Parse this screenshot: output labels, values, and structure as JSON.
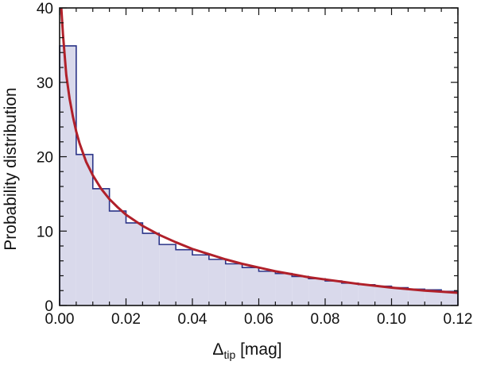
{
  "chart_data": {
    "type": "bar",
    "title": "",
    "xlabel": {
      "main": "Δ",
      "sub": "tip",
      "unit": " [mag]"
    },
    "ylabel": "Probability distribution",
    "xlim": [
      0,
      0.12
    ],
    "ylim": [
      0,
      40
    ],
    "xticks": [
      "0.00",
      "0.02",
      "0.04",
      "0.06",
      "0.08",
      "0.10",
      "0.12"
    ],
    "yticks": [
      "0",
      "10",
      "20",
      "30",
      "40"
    ],
    "histogram": {
      "bin_width": 0.005,
      "bin_edges": [
        0,
        0.005,
        0.01,
        0.015,
        0.02,
        0.025,
        0.03,
        0.035,
        0.04,
        0.045,
        0.05,
        0.055,
        0.06,
        0.065,
        0.07,
        0.075,
        0.08,
        0.085,
        0.09,
        0.095,
        0.1,
        0.105,
        0.11,
        0.115,
        0.12
      ],
      "values": [
        34.9,
        20.3,
        15.7,
        12.7,
        11.1,
        9.7,
        8.2,
        7.5,
        6.8,
        6.2,
        5.6,
        5.1,
        4.6,
        4.3,
        3.9,
        3.6,
        3.3,
        3.0,
        2.8,
        2.6,
        2.4,
        2.2,
        2.1,
        1.9
      ]
    },
    "fit_curve": {
      "x": [
        0.0005,
        0.001,
        0.002,
        0.003,
        0.004,
        0.005,
        0.006,
        0.008,
        0.01,
        0.0125,
        0.015,
        0.0175,
        0.02,
        0.025,
        0.03,
        0.035,
        0.04,
        0.045,
        0.05,
        0.055,
        0.06,
        0.065,
        0.07,
        0.075,
        0.08,
        0.085,
        0.09,
        0.095,
        0.1,
        0.105,
        0.11,
        0.115,
        0.12
      ],
      "y": [
        40.0,
        36.5,
        31.0,
        27.8,
        25.4,
        23.4,
        21.8,
        19.3,
        17.5,
        15.7,
        14.3,
        13.2,
        12.2,
        10.7,
        9.5,
        8.5,
        7.6,
        6.9,
        6.2,
        5.6,
        5.1,
        4.6,
        4.2,
        3.8,
        3.5,
        3.2,
        2.9,
        2.65,
        2.4,
        2.2,
        2.0,
        1.85,
        1.7
      ]
    },
    "colors": {
      "bar_fill": "#d9d9eb",
      "bar_edge": "#2b3488",
      "curve": "#b0202a",
      "axis": "#111111"
    },
    "grid": false,
    "legend": "none"
  }
}
